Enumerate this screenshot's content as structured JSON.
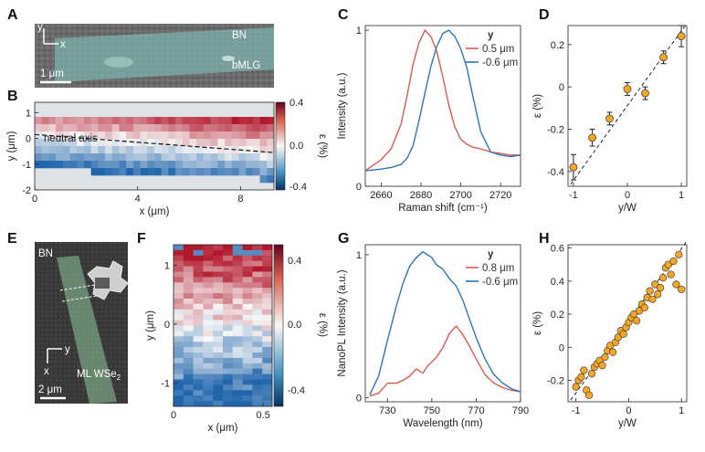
{
  "panels": {
    "A": {
      "label": "A",
      "material_top": "BN",
      "material_bottom": "bMLG",
      "scale_bar": "1 μm",
      "axis_y": "y",
      "axis_x": "x"
    },
    "B": {
      "label": "B",
      "annotation": "neutral axis",
      "colorbar_label": "ε (%)",
      "colorbar_ticks": [
        "0.4",
        "0.0",
        "-0.4"
      ]
    },
    "C": {
      "label": "C"
    },
    "D": {
      "label": "D"
    },
    "E": {
      "label": "E",
      "material_top": "BN",
      "material_bottom": "ML WSe",
      "material_bottom_sub": "2",
      "scale_bar": "2 μm",
      "axis_y": "y",
      "axis_x": "x"
    },
    "F": {
      "label": "F",
      "colorbar_label": "ε (%)",
      "colorbar_ticks": [
        "0.4",
        "0.0",
        "-0.4"
      ]
    },
    "G": {
      "label": "G"
    },
    "H": {
      "label": "H"
    }
  },
  "colors": {
    "red": "#e0584f",
    "blue": "#2e74b8",
    "marker": "#f5a623",
    "map_red": "#b2182b",
    "map_blue": "#2166ac"
  },
  "chart_data": [
    {
      "id": "B",
      "type": "heatmap",
      "xlabel": "x (μm)",
      "ylabel": "y (μm)",
      "xlim": [
        0,
        9.3
      ],
      "ylim": [
        -2,
        1.4
      ],
      "xticks": [
        "0",
        "4",
        "8"
      ],
      "yticks": [
        "1",
        "0",
        "-1",
        "-2"
      ],
      "colorscale_range": [
        -0.4,
        0.4
      ],
      "neutral_axis_line": {
        "x": [
          0,
          9.3
        ],
        "y": [
          0.15,
          -0.55
        ]
      }
    },
    {
      "id": "C",
      "type": "line",
      "xlabel": "Raman shift (cm⁻¹)",
      "ylabel": "Intensity (a.u.)",
      "xlim": [
        2652,
        2730
      ],
      "ylim": [
        0,
        1.03
      ],
      "xticks": [
        "2660",
        "2680",
        "2700",
        "2720"
      ],
      "yticks": [
        "0",
        "1"
      ],
      "legend_title": "y",
      "x": [
        2652,
        2660,
        2665,
        2670,
        2673,
        2676,
        2679,
        2682,
        2685,
        2688,
        2691,
        2694,
        2697,
        2700,
        2703,
        2706,
        2710,
        2715,
        2720,
        2725,
        2730
      ],
      "series": [
        {
          "name": "0.5 μm",
          "values": [
            0.1,
            0.17,
            0.24,
            0.4,
            0.58,
            0.78,
            0.92,
            1.0,
            0.96,
            0.86,
            0.7,
            0.52,
            0.38,
            0.3,
            0.27,
            0.25,
            0.24,
            0.22,
            0.21,
            0.2,
            0.2
          ]
        },
        {
          "name": "-0.6 μm",
          "values": [
            0.1,
            0.11,
            0.12,
            0.14,
            0.18,
            0.26,
            0.42,
            0.6,
            0.77,
            0.9,
            0.98,
            1.0,
            0.96,
            0.88,
            0.76,
            0.58,
            0.35,
            0.22,
            0.2,
            0.19,
            0.2
          ]
        }
      ]
    },
    {
      "id": "D",
      "type": "scatter",
      "xlabel": "y/W",
      "ylabel": "ε (%)",
      "xlim": [
        -1.1,
        1.1
      ],
      "ylim": [
        -0.47,
        0.29
      ],
      "xticks": [
        "-1",
        "0",
        "1"
      ],
      "yticks": [
        "0.2",
        "0",
        "-0.2",
        "-0.4"
      ],
      "x": [
        -1.0,
        -0.65,
        -0.33,
        0.0,
        0.33,
        0.67,
        1.0
      ],
      "y": [
        -0.38,
        -0.24,
        -0.15,
        -0.01,
        -0.03,
        0.14,
        0.24
      ],
      "yerr": [
        0.06,
        0.04,
        0.03,
        0.03,
        0.03,
        0.03,
        0.05
      ],
      "fit_line": {
        "x": [
          -1.05,
          1.1
        ],
        "y": [
          -0.46,
          0.3
        ]
      }
    },
    {
      "id": "F",
      "type": "heatmap",
      "xlabel": "x (μm)",
      "ylabel": "y (μm)",
      "xlim": [
        0,
        0.55
      ],
      "ylim": [
        -1.4,
        1.35
      ],
      "xticks": [
        "0",
        "0.5"
      ],
      "yticks": [
        "1",
        "0",
        "-1"
      ],
      "colorscale_range": [
        -0.4,
        0.4
      ]
    },
    {
      "id": "G",
      "type": "line",
      "xlabel": "Wavelength (nm)",
      "ylabel": "NanoPL Intensity (a.u.)",
      "xlim": [
        720,
        790
      ],
      "ylim": [
        -0.03,
        1.07
      ],
      "xticks": [
        "730",
        "750",
        "770",
        "790"
      ],
      "yticks": [
        "0",
        "1"
      ],
      "legend_title": "y",
      "x": [
        722,
        726,
        730,
        734,
        737,
        740,
        743,
        746,
        748,
        750,
        752,
        755,
        758,
        761,
        764,
        767,
        770,
        774,
        778,
        782,
        786,
        790
      ],
      "series": [
        {
          "name": "0.8 μm",
          "values": [
            0.01,
            0.03,
            0.1,
            0.1,
            0.12,
            0.15,
            0.2,
            0.17,
            0.22,
            0.25,
            0.28,
            0.35,
            0.45,
            0.5,
            0.44,
            0.36,
            0.27,
            0.16,
            0.1,
            0.07,
            0.05,
            0.04
          ]
        },
        {
          "name": "-0.6 μm",
          "values": [
            0.02,
            0.15,
            0.4,
            0.64,
            0.8,
            0.92,
            0.98,
            1.02,
            1.0,
            0.98,
            0.93,
            0.9,
            0.83,
            0.78,
            0.68,
            0.55,
            0.42,
            0.27,
            0.16,
            0.1,
            0.06,
            0.04
          ]
        }
      ]
    },
    {
      "id": "H",
      "type": "scatter",
      "xlabel": "y/W",
      "ylabel": "ε (%)",
      "xlim": [
        -1.15,
        1.1
      ],
      "ylim": [
        -0.33,
        0.62
      ],
      "xticks": [
        "-1",
        "0",
        "1"
      ],
      "yticks": [
        "0.6",
        "0.4",
        "0.2",
        "0",
        "-0.2"
      ],
      "x": [
        -1.0,
        -0.95,
        -0.9,
        -0.85,
        -0.8,
        -0.75,
        -0.7,
        -0.65,
        -0.6,
        -0.55,
        -0.5,
        -0.45,
        -0.4,
        -0.35,
        -0.3,
        -0.25,
        -0.2,
        -0.15,
        -0.1,
        -0.05,
        0.0,
        0.05,
        0.1,
        0.15,
        0.2,
        0.25,
        0.3,
        0.35,
        0.4,
        0.45,
        0.5,
        0.55,
        0.6,
        0.65,
        0.7,
        0.75,
        0.8,
        0.85,
        0.9,
        0.95,
        1.0
      ],
      "y": [
        -0.24,
        -0.2,
        -0.18,
        -0.14,
        -0.26,
        -0.29,
        -0.16,
        -0.12,
        -0.1,
        -0.08,
        -0.11,
        -0.06,
        -0.02,
        0.01,
        -0.03,
        0.03,
        0.06,
        0.1,
        0.08,
        0.12,
        0.15,
        0.18,
        0.2,
        0.16,
        0.22,
        0.26,
        0.24,
        0.3,
        0.34,
        0.29,
        0.38,
        0.32,
        0.36,
        0.42,
        0.48,
        0.5,
        0.44,
        0.52,
        0.38,
        0.56,
        0.35
      ],
      "fit_line": {
        "x": [
          -1.1,
          1.1
        ],
        "y": [
          -0.32,
          0.64
        ]
      }
    }
  ]
}
